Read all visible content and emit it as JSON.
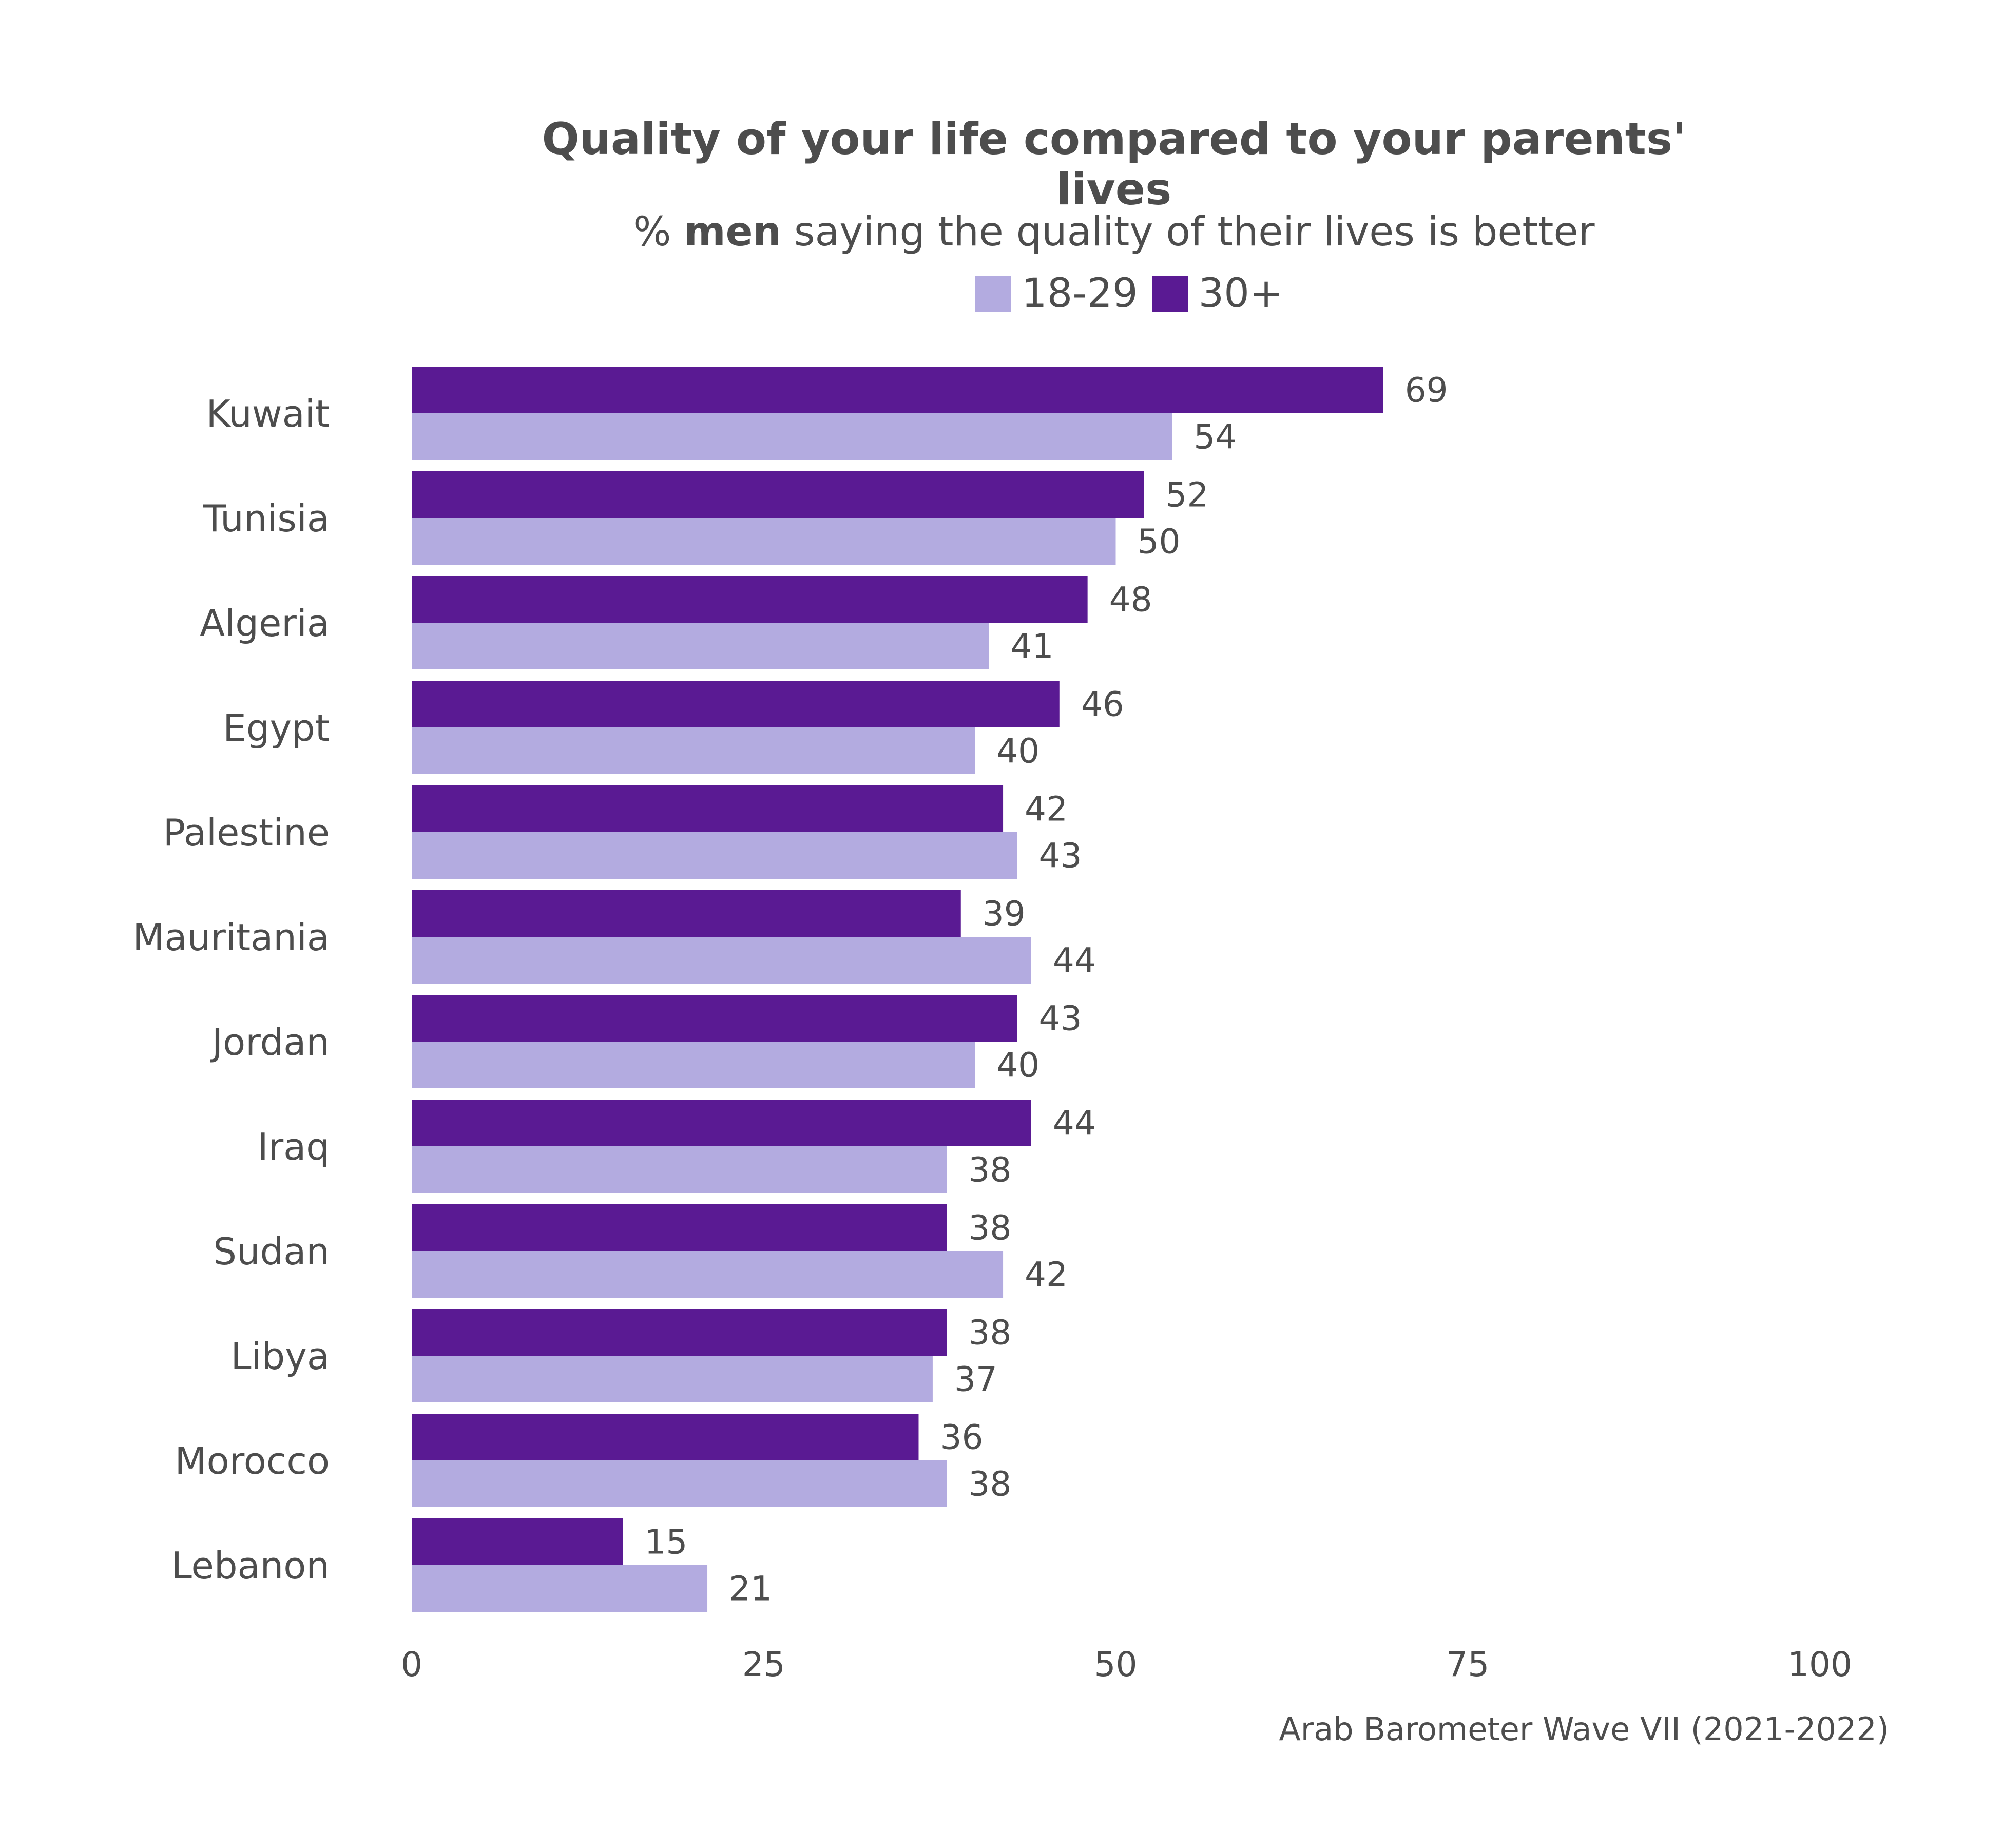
{
  "chart_data": {
    "type": "bar",
    "orientation": "horizontal",
    "title_lines": [
      "Quality of your life compared to your parents'",
      "lives"
    ],
    "subtitle": {
      "prefix": "% ",
      "bold": "men",
      "suffix": " saying the quality of their lives is better"
    },
    "categories": [
      "Kuwait",
      "Tunisia",
      "Algeria",
      "Egypt",
      "Palestine",
      "Mauritania",
      "Jordan",
      "Iraq",
      "Sudan",
      "Libya",
      "Morocco",
      "Lebanon"
    ],
    "series": [
      {
        "name": "30+",
        "color": "#5a1a93",
        "values": [
          69,
          52,
          48,
          46,
          42,
          39,
          43,
          44,
          38,
          38,
          36,
          15
        ]
      },
      {
        "name": "18-29",
        "color": "#b3abe0",
        "values": [
          54,
          50,
          41,
          40,
          43,
          44,
          40,
          38,
          42,
          37,
          38,
          21
        ]
      }
    ],
    "legend_order": [
      "18-29",
      "30+"
    ],
    "legend_position": "top",
    "xlim": [
      0,
      100
    ],
    "xticks": [
      0,
      25,
      50,
      75,
      100
    ],
    "grid": false,
    "caption": "Arab Barometer Wave VII (2021-2022)"
  }
}
